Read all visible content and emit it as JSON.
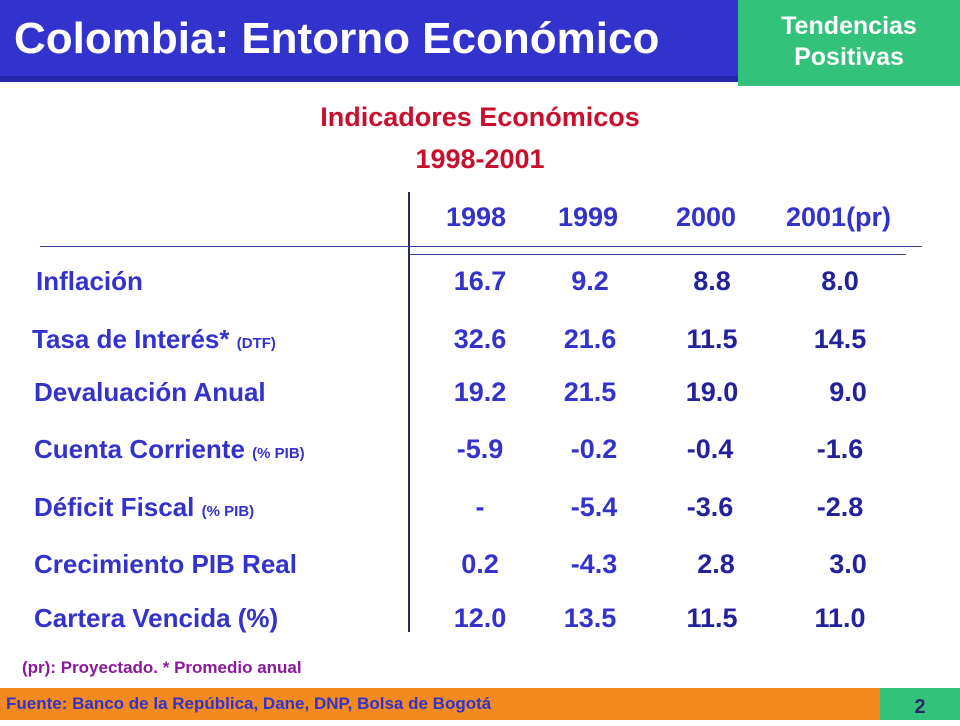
{
  "header": {
    "title": "Colombia: Entorno Económico",
    "badge_line1": "Tendencias",
    "badge_line2": "Positivas"
  },
  "section": {
    "title": "Indicadores Económicos",
    "period": "1998-2001"
  },
  "table": {
    "years": [
      "1998",
      "1999",
      "2000",
      "2001(pr)"
    ],
    "rows": [
      {
        "label": "Inflación",
        "qualifier": "",
        "values": [
          "16.7",
          "9.2",
          "8.8",
          "8.0"
        ]
      },
      {
        "label": "Tasa de Interés*",
        "qualifier": "(DTF)",
        "values": [
          "32.6",
          "21.6",
          "11.5",
          "14.5"
        ]
      },
      {
        "label": "Devaluación Anual",
        "qualifier": "",
        "values": [
          "19.2",
          "21.5",
          "19.0",
          "9.0"
        ]
      },
      {
        "label": "Cuenta Corriente",
        "qualifier": "(% PIB)",
        "values": [
          "-5.9",
          "-0.2",
          "-0.4",
          "-1.6"
        ]
      },
      {
        "label": "Déficit Fiscal",
        "qualifier": "(% PIB)",
        "values": [
          "-",
          "-5.4",
          "-3.6",
          "-2.8"
        ]
      },
      {
        "label": "Crecimiento PIB Real",
        "qualifier": "",
        "values": [
          "0.2",
          "-4.3",
          "2.8",
          "3.0"
        ]
      },
      {
        "label": "Cartera Vencida (%)",
        "qualifier": "",
        "values": [
          "12.0",
          "13.5",
          "11.5",
          "11.0"
        ]
      }
    ]
  },
  "note": "(pr): Proyectado. * Promedio anual",
  "footer": {
    "source": "Fuente: Banco de la República, Dane, DNP, Bolsa de Bogotá",
    "page": "2"
  }
}
